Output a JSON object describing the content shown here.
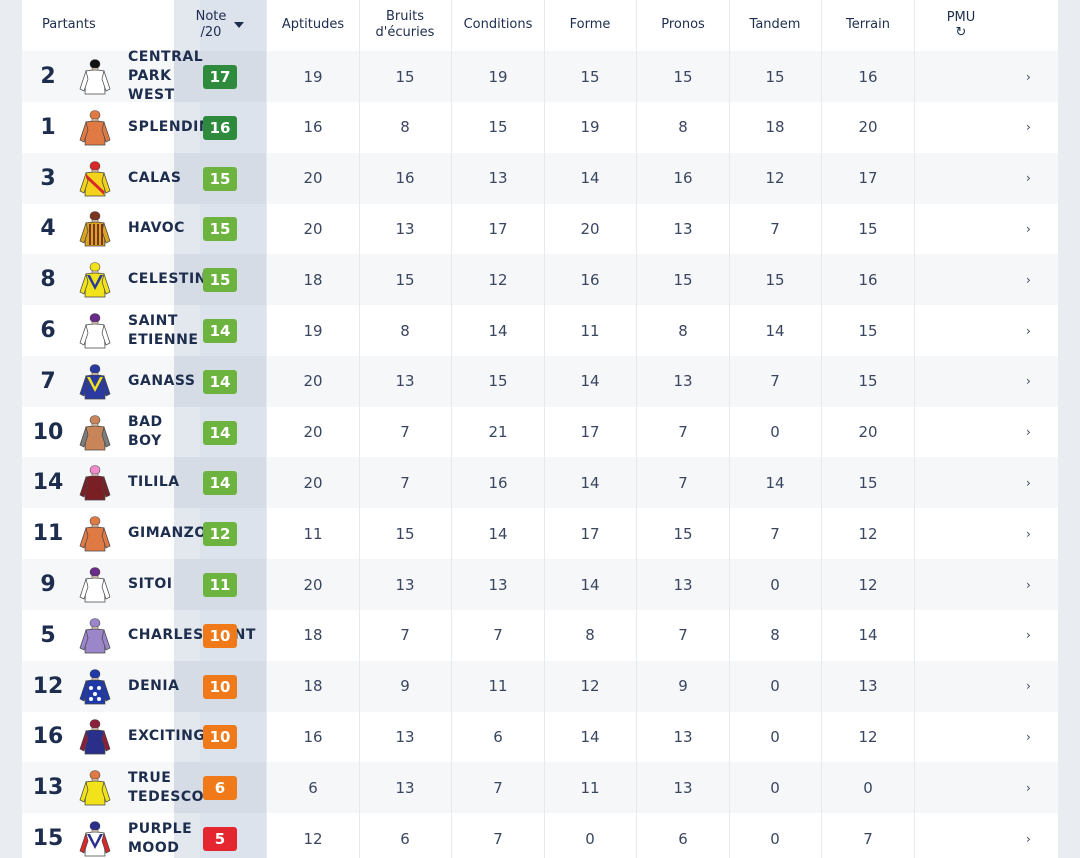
{
  "header": {
    "partants": "Partants",
    "note_line1": "Note",
    "note_line2": "/20",
    "aptitudes": "Aptitudes",
    "bruits_line1": "Bruits",
    "bruits_line2": "d'écuries",
    "conditions": "Conditions",
    "forme": "Forme",
    "pronos": "Pronos",
    "tandem": "Tandem",
    "terrain": "Terrain",
    "pmu": "PMU",
    "refresh_icon": "refresh-icon",
    "sort_icon": "caret-down-icon"
  },
  "colors": {
    "green_dark": "#2e8b3e",
    "green": "#6db33f",
    "orange": "#f07a1a",
    "red": "#e3262f"
  },
  "rows": [
    {
      "num": "2",
      "name": "CENTRAL\nPARK\nWEST",
      "note": "17",
      "tier": "dark",
      "aptitudes": "19",
      "bruits": "15",
      "conditions": "19",
      "forme": "15",
      "pronos": "15",
      "tandem": "15",
      "terrain": "16",
      "chevron": "›",
      "silk": {
        "body": "#ffffff",
        "arms": "#ffffff",
        "cap": "#111111",
        "pattern": "none",
        "accent": "#111111"
      }
    },
    {
      "num": "1",
      "name": "SPLENDIN",
      "note": "16",
      "tier": "dark",
      "aptitudes": "16",
      "bruits": "8",
      "conditions": "15",
      "forme": "19",
      "pronos": "8",
      "tandem": "18",
      "terrain": "20",
      "chevron": "›",
      "silk": {
        "body": "#e07a45",
        "arms": "#e07a45",
        "cap": "#e07a45",
        "pattern": "none",
        "accent": "#e07a45"
      }
    },
    {
      "num": "3",
      "name": "CALAS",
      "note": "15",
      "tier": "green",
      "aptitudes": "20",
      "bruits": "16",
      "conditions": "13",
      "forme": "14",
      "pronos": "16",
      "tandem": "12",
      "terrain": "17",
      "chevron": "›",
      "silk": {
        "body": "#f2d21a",
        "arms": "#f2d21a",
        "cap": "#d8282a",
        "pattern": "sash",
        "accent": "#d8282a"
      }
    },
    {
      "num": "4",
      "name": "HAVOC",
      "note": "15",
      "tier": "green",
      "aptitudes": "20",
      "bruits": "13",
      "conditions": "17",
      "forme": "20",
      "pronos": "13",
      "tandem": "7",
      "terrain": "15",
      "chevron": "›",
      "silk": {
        "body": "#d9a521",
        "arms": "#d9a521",
        "cap": "#7a3420",
        "pattern": "stripes",
        "accent": "#7a3420"
      }
    },
    {
      "num": "8",
      "name": "CELESTIN",
      "note": "15",
      "tier": "green",
      "aptitudes": "18",
      "bruits": "15",
      "conditions": "12",
      "forme": "16",
      "pronos": "15",
      "tandem": "15",
      "terrain": "16",
      "chevron": "›",
      "silk": {
        "body": "#f2e21a",
        "arms": "#f2e21a",
        "cap": "#f2e21a",
        "pattern": "vee",
        "accent": "#2a3a9a"
      }
    },
    {
      "num": "6",
      "name": "SAINT\nETIENNE",
      "note": "14",
      "tier": "green",
      "aptitudes": "19",
      "bruits": "8",
      "conditions": "14",
      "forme": "11",
      "pronos": "8",
      "tandem": "14",
      "terrain": "15",
      "chevron": "›",
      "silk": {
        "body": "#ffffff",
        "arms": "#ffffff",
        "cap": "#6a2a8a",
        "pattern": "none",
        "accent": "#6a2a8a"
      }
    },
    {
      "num": "7",
      "name": "GANASS",
      "note": "14",
      "tier": "green",
      "aptitudes": "20",
      "bruits": "13",
      "conditions": "15",
      "forme": "14",
      "pronos": "13",
      "tandem": "7",
      "terrain": "15",
      "chevron": "›",
      "silk": {
        "body": "#2a3aa0",
        "arms": "#2a3aa0",
        "cap": "#2a3aa0",
        "pattern": "vee",
        "accent": "#f2e21a"
      }
    },
    {
      "num": "10",
      "name": "BAD\nBOY",
      "note": "14",
      "tier": "green",
      "aptitudes": "20",
      "bruits": "7",
      "conditions": "21",
      "forme": "17",
      "pronos": "7",
      "tandem": "0",
      "terrain": "20",
      "chevron": "›",
      "silk": {
        "body": "#c9855a",
        "arms": "#7d7d7d",
        "cap": "#c9855a",
        "pattern": "none",
        "accent": "#c9855a"
      }
    },
    {
      "num": "14",
      "name": "TILILA",
      "note": "14",
      "tier": "green",
      "aptitudes": "20",
      "bruits": "7",
      "conditions": "16",
      "forme": "14",
      "pronos": "7",
      "tandem": "14",
      "terrain": "15",
      "chevron": "›",
      "silk": {
        "body": "#7a1f24",
        "arms": "#7a1f24",
        "cap": "#f08ac8",
        "pattern": "none",
        "accent": "#7a1f24"
      }
    },
    {
      "num": "11",
      "name": "GIMANZOR",
      "note": "12",
      "tier": "green",
      "aptitudes": "11",
      "bruits": "15",
      "conditions": "14",
      "forme": "17",
      "pronos": "15",
      "tandem": "7",
      "terrain": "12",
      "chevron": "›",
      "silk": {
        "body": "#e07a45",
        "arms": "#e07a45",
        "cap": "#e07a45",
        "pattern": "none",
        "accent": "#e07a45"
      }
    },
    {
      "num": "9",
      "name": "SITOI",
      "note": "11",
      "tier": "green",
      "aptitudes": "20",
      "bruits": "13",
      "conditions": "13",
      "forme": "14",
      "pronos": "13",
      "tandem": "0",
      "terrain": "12",
      "chevron": "›",
      "silk": {
        "body": "#ffffff",
        "arms": "#ffffff",
        "cap": "#6a2a8a",
        "pattern": "none",
        "accent": "#6a2a8a"
      }
    },
    {
      "num": "5",
      "name": "CHARLESQUINT",
      "note": "10",
      "tier": "orange",
      "aptitudes": "18",
      "bruits": "7",
      "conditions": "7",
      "forme": "8",
      "pronos": "7",
      "tandem": "8",
      "terrain": "14",
      "chevron": "›",
      "silk": {
        "body": "#9b86c9",
        "arms": "#9b86c9",
        "cap": "#9b86c9",
        "pattern": "none",
        "accent": "#9b86c9"
      }
    },
    {
      "num": "12",
      "name": "DENIA",
      "note": "10",
      "tier": "orange",
      "aptitudes": "18",
      "bruits": "9",
      "conditions": "11",
      "forme": "12",
      "pronos": "9",
      "tandem": "0",
      "terrain": "13",
      "chevron": "›",
      "silk": {
        "body": "#1f3aa8",
        "arms": "#1f3aa8",
        "cap": "#1f3aa8",
        "pattern": "dots",
        "accent": "#ffffff"
      }
    },
    {
      "num": "16",
      "name": "EXCITING",
      "note": "10",
      "tier": "orange",
      "aptitudes": "16",
      "bruits": "13",
      "conditions": "6",
      "forme": "14",
      "pronos": "13",
      "tandem": "0",
      "terrain": "12",
      "chevron": "›",
      "silk": {
        "body": "#2a2f8a",
        "arms": "#8a1f3a",
        "cap": "#8a1f3a",
        "pattern": "none",
        "accent": "#8a1f3a"
      }
    },
    {
      "num": "13",
      "name": "TRUE\nTEDESCO",
      "note": "6",
      "tier": "orange",
      "aptitudes": "6",
      "bruits": "13",
      "conditions": "7",
      "forme": "11",
      "pronos": "13",
      "tandem": "0",
      "terrain": "0",
      "chevron": "›",
      "silk": {
        "body": "#f2e21a",
        "arms": "#f2e21a",
        "cap": "#e07a45",
        "pattern": "none",
        "accent": "#e07a45"
      }
    },
    {
      "num": "15",
      "name": "PURPLE\nMOOD",
      "note": "5",
      "tier": "red",
      "aptitudes": "12",
      "bruits": "6",
      "conditions": "7",
      "forme": "0",
      "pronos": "6",
      "tandem": "0",
      "terrain": "7",
      "chevron": "›",
      "silk": {
        "body": "#ffffff",
        "arms": "#d8282a",
        "cap": "#2a2f8a",
        "pattern": "vee",
        "accent": "#2a2f8a"
      }
    }
  ]
}
